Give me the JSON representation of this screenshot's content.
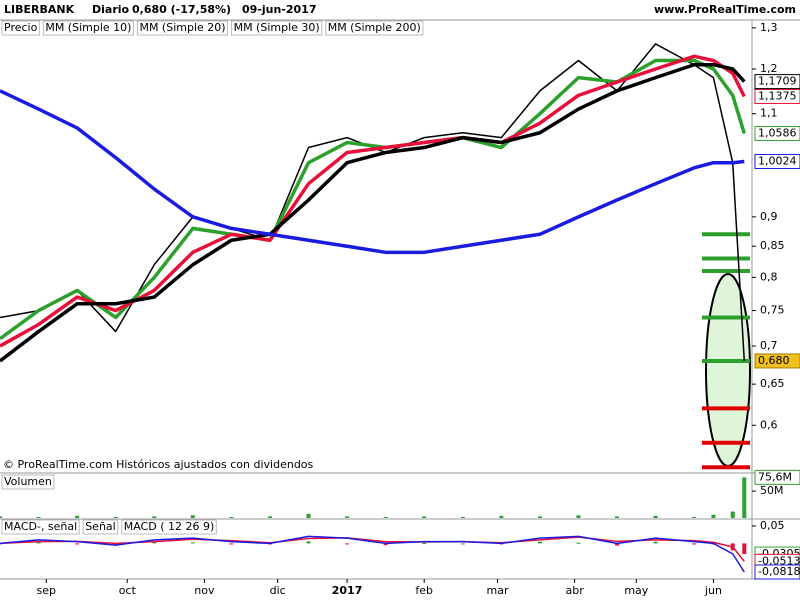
{
  "header": {
    "symbol": "LIBERBANK",
    "period": "Diario",
    "quote": "0,680 (-17,58%)",
    "date": "09-jun-2017",
    "site": "www.ProRealTime.com"
  },
  "chart_data": [
    {
      "type": "line",
      "log": true,
      "note": "© ProRealTime.com Históricos ajustados con dividendos",
      "x": [
        0,
        10,
        20,
        30,
        40,
        50,
        60,
        70,
        80,
        90,
        100,
        110,
        120,
        130,
        140,
        150,
        160,
        170,
        180,
        185,
        190,
        193
      ],
      "xlim": [
        0,
        195
      ],
      "ylim": [
        0.55,
        1.32
      ],
      "yticks": [
        {
          "value": 1.3,
          "label": "1,3"
        },
        {
          "value": 1.2,
          "label": "1,2"
        },
        {
          "value": 1.1,
          "label": "1,1"
        },
        {
          "value": 0.9,
          "label": "0,9"
        },
        {
          "value": 0.85,
          "label": "0,85"
        },
        {
          "value": 0.8,
          "label": "0,8"
        },
        {
          "value": 0.75,
          "label": "0,75"
        },
        {
          "value": 0.7,
          "label": "0,7"
        },
        {
          "value": 0.65,
          "label": "0,65"
        },
        {
          "value": 0.6,
          "label": "0,6"
        }
      ],
      "series": [
        {
          "name": "Precio",
          "color": "#000000",
          "last_label": "0,680",
          "values": [
            0.74,
            0.75,
            0.78,
            0.72,
            0.82,
            0.9,
            0.88,
            0.86,
            1.03,
            1.05,
            1.02,
            1.05,
            1.06,
            1.05,
            1.15,
            1.22,
            1.15,
            1.26,
            1.21,
            1.18,
            1.0,
            0.68
          ]
        },
        {
          "name": "MM (Simple 10)",
          "color": "#2ca02c",
          "last_label": "1,0586",
          "values": [
            0.71,
            0.75,
            0.78,
            0.74,
            0.8,
            0.88,
            0.87,
            0.86,
            1.0,
            1.04,
            1.03,
            1.04,
            1.05,
            1.03,
            1.1,
            1.18,
            1.17,
            1.22,
            1.22,
            1.2,
            1.14,
            1.0586
          ]
        },
        {
          "name": "MM (Simple 20)",
          "color": "#e8103a",
          "last_label": "1,1375",
          "values": [
            0.7,
            0.73,
            0.77,
            0.75,
            0.78,
            0.84,
            0.87,
            0.86,
            0.96,
            1.02,
            1.03,
            1.04,
            1.05,
            1.04,
            1.08,
            1.14,
            1.17,
            1.2,
            1.23,
            1.22,
            1.19,
            1.1375
          ]
        },
        {
          "name": "MM (Simple 30)",
          "color": "#000000",
          "last_label": "1,1709",
          "values": [
            0.68,
            0.72,
            0.76,
            0.76,
            0.77,
            0.82,
            0.86,
            0.87,
            0.93,
            1.0,
            1.02,
            1.03,
            1.05,
            1.04,
            1.06,
            1.11,
            1.15,
            1.18,
            1.21,
            1.21,
            1.2,
            1.1709
          ]
        },
        {
          "name": "MM (Simple 200)",
          "color": "#1a1ae0",
          "last_label": "1,0024",
          "values": [
            1.15,
            1.11,
            1.07,
            1.01,
            0.95,
            0.9,
            0.88,
            0.87,
            0.86,
            0.85,
            0.84,
            0.84,
            0.85,
            0.86,
            0.87,
            0.9,
            0.93,
            0.96,
            0.99,
            1.0,
            1.0,
            1.0024
          ]
        }
      ],
      "levels": [
        {
          "color": "#2ca02c",
          "values": [
            0.87,
            0.83,
            0.81,
            0.74,
            0.68
          ]
        },
        {
          "color": "#e00000",
          "values": [
            0.62,
            0.58,
            0.553
          ]
        }
      ]
    },
    {
      "type": "bar",
      "x": [
        0,
        10,
        20,
        30,
        40,
        50,
        60,
        70,
        80,
        90,
        100,
        110,
        120,
        130,
        140,
        150,
        160,
        170,
        180,
        185,
        190,
        193
      ],
      "xlim": [
        0,
        195
      ],
      "ylim": [
        0,
        80000000
      ],
      "yticks": [
        {
          "value": 50000000,
          "label": "50M"
        }
      ],
      "series": [
        {
          "name": "Volumen",
          "color": "#2ca02c",
          "last_label": "75,6M",
          "values": [
            3000000,
            2000000,
            4000000,
            2000000,
            3000000,
            5000000,
            2000000,
            3000000,
            8000000,
            3000000,
            2000000,
            3000000,
            2000000,
            4000000,
            3000000,
            5000000,
            3000000,
            4000000,
            2000000,
            6000000,
            12000000,
            75600000
          ]
        }
      ]
    },
    {
      "type": "line",
      "x": [
        0,
        10,
        20,
        30,
        40,
        50,
        60,
        70,
        80,
        90,
        100,
        110,
        120,
        130,
        140,
        150,
        160,
        170,
        180,
        185,
        190,
        193
      ],
      "xlim": [
        0,
        195
      ],
      "ylim": [
        -0.099,
        0.067
      ],
      "yticks": [
        {
          "value": 0.05,
          "label": "0,05"
        }
      ],
      "xticks": [
        {
          "value": 12,
          "label": "sep"
        },
        {
          "value": 33,
          "label": "oct"
        },
        {
          "value": 53,
          "label": "nov"
        },
        {
          "value": 72,
          "label": "dic"
        },
        {
          "value": 90,
          "label": "2017"
        },
        {
          "value": 110,
          "label": "feb"
        },
        {
          "value": 129,
          "label": "mar"
        },
        {
          "value": 149,
          "label": "abr"
        },
        {
          "value": 165,
          "label": "may"
        },
        {
          "value": 185,
          "label": "jun"
        }
      ],
      "series": [
        {
          "name": "MACD-, señal",
          "style": "histogram",
          "color": "#2ca02c",
          "last_label": "-0,0305",
          "values": [
            0,
            0.005,
            -0.001,
            -0.005,
            0.005,
            0.003,
            -0.003,
            -0.002,
            0.006,
            -0.001,
            -0.005,
            0.001,
            0,
            -0.002,
            0.005,
            0.002,
            -0.006,
            0.005,
            -0.003,
            -0.003,
            -0.02,
            -0.0305
          ]
        },
        {
          "name": "Señal",
          "color": "#e8103a",
          "last_label": "-0,0513",
          "values": [
            0,
            0.005,
            0.006,
            0,
            0.005,
            0.012,
            0.008,
            0.002,
            0.014,
            0.016,
            0.005,
            0.004,
            0.005,
            0.002,
            0.01,
            0.018,
            0.006,
            0.01,
            0.008,
            0.003,
            -0.01,
            -0.0513
          ]
        },
        {
          "name": "MACD ( 12 26 9)",
          "color": "#1a1ae0",
          "last_label": "-0,0818",
          "values": [
            0,
            0.01,
            0.005,
            -0.005,
            0.01,
            0.015,
            0.005,
            0,
            0.02,
            0.015,
            0,
            0.005,
            0.005,
            0,
            0.015,
            0.02,
            0,
            0.015,
            0.005,
            0,
            -0.03,
            -0.0818
          ]
        }
      ]
    }
  ]
}
